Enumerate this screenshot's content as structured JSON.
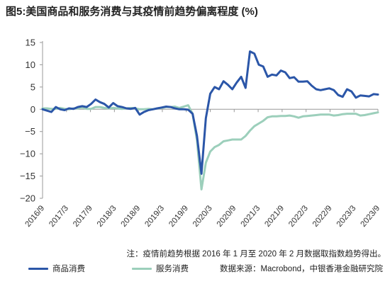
{
  "title": "图5:美国商品和服务消费与其疫情前趋势偏离程度 (%)",
  "note": "注：疫情前趋势根据 2016 年 1 月至 2020 年 2 月数据取指数趋势得出。",
  "source": "数据来源：Macrobond，中银香港金融研究院",
  "chart_data": {
    "type": "line",
    "title": "图5:美国商品和服务消费与其疫情前趋势偏离程度 (%)",
    "xlabel": "",
    "ylabel": "",
    "x_tick_labels": [
      "2016/9",
      "2017/3",
      "2017/9",
      "2018/3",
      "2018/9",
      "2019/3",
      "2019/9",
      "2020/3",
      "2020/9",
      "2021/3",
      "2021/9",
      "2022/3",
      "2022/9",
      "2023/3",
      "2023/9"
    ],
    "x_start": "2016/9",
    "x_end": "2023/9",
    "y_ticks": [
      15,
      10,
      5,
      0,
      -5,
      -10,
      -15,
      -20
    ],
    "ylim": [
      -20,
      15
    ],
    "grid": false,
    "legend_position": "bottom",
    "series": [
      {
        "name": "商品消费",
        "color": "#2b56a8",
        "values": [
          0,
          -0.3,
          -0.6,
          0.5,
          0,
          -0.2,
          0.2,
          0.1,
          0.5,
          0.7,
          0.5,
          1.2,
          2.2,
          1.6,
          1.2,
          0.4,
          1.4,
          0.7,
          0.5,
          0.2,
          0.1,
          0.3,
          -1.2,
          -0.6,
          -0.2,
          0,
          0.2,
          0.4,
          0.6,
          0.5,
          0.2,
          0,
          0,
          -0.1,
          -1,
          -6,
          -14.5,
          -2,
          3.5,
          5,
          4.5,
          6.3,
          5.5,
          4.5,
          6,
          7.3,
          4.8,
          13,
          12.5,
          10,
          9.6,
          7.3,
          7.8,
          7.6,
          8.7,
          8.3,
          7,
          7.2,
          6.2,
          6.2,
          6.3,
          5.3,
          4.5,
          4.3,
          4.5,
          4.7,
          4.3,
          3.2,
          2.8,
          4.5,
          4,
          2.6,
          3.1,
          3,
          2.9,
          3.4,
          3.3
        ]
      },
      {
        "name": "服务消费",
        "color": "#9ccfbb",
        "values": [
          0.2,
          0.2,
          0.1,
          0.1,
          0.3,
          0.1,
          0,
          0.2,
          0.2,
          0.4,
          0.1,
          0.1,
          0.5,
          0.5,
          0.3,
          0.2,
          0.3,
          0.2,
          0.1,
          0.2,
          0.3,
          0.2,
          0,
          0,
          0.1,
          0,
          0.2,
          0.3,
          0.5,
          0.5,
          0.6,
          0.3,
          0.6,
          0.9,
          -1,
          -7,
          -18,
          -12,
          -9.5,
          -8.5,
          -8,
          -7.2,
          -7,
          -6.8,
          -6.8,
          -6.8,
          -6,
          -4.8,
          -3.8,
          -3.2,
          -2.6,
          -1.8,
          -1.6,
          -1.6,
          -1.5,
          -1.5,
          -1.4,
          -1.6,
          -1.9,
          -1.6,
          -1.5,
          -1.4,
          -1.3,
          -1.2,
          -1.2,
          -1.2,
          -1.4,
          -1.3,
          -1.1,
          -1,
          -1,
          -1,
          -1.4,
          -1.3,
          -1.1,
          -0.9,
          -0.7
        ]
      }
    ]
  }
}
